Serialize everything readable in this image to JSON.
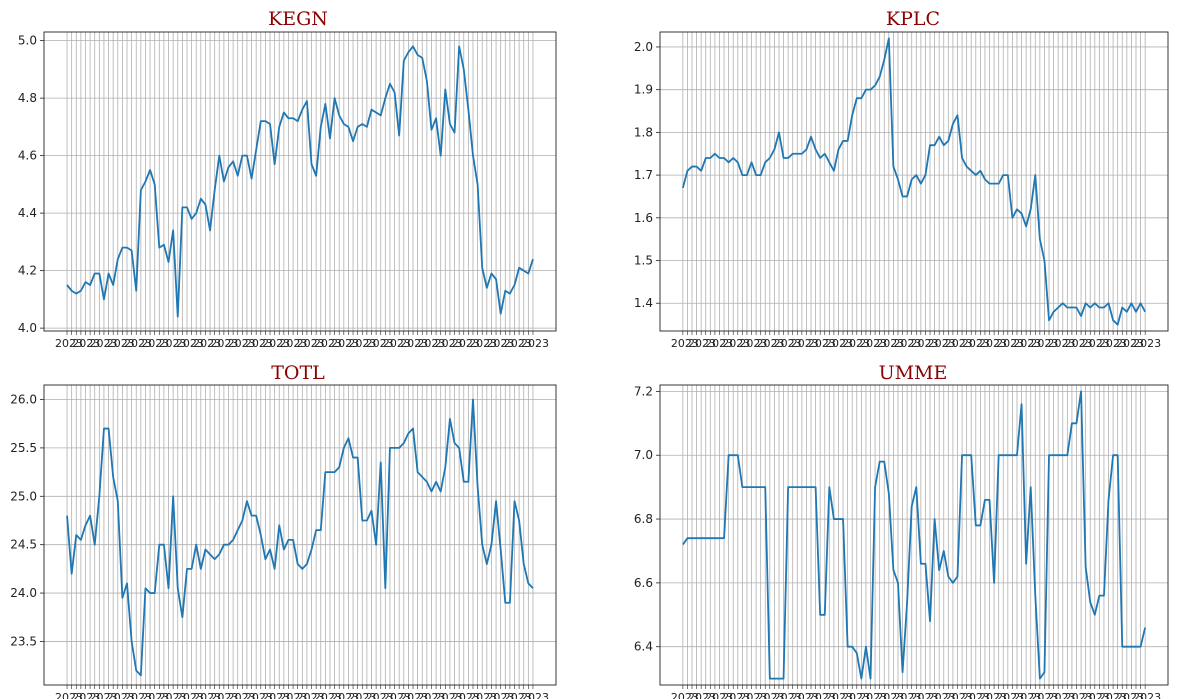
{
  "chart_data": [
    {
      "type": "line",
      "title": "KEGN",
      "ylim": [
        3.99,
        5.03
      ],
      "yticks": [
        4.0,
        4.2,
        4.4,
        4.6,
        4.8,
        5.0
      ],
      "ytick_labels": [
        "4.0",
        "4.2",
        "4.4",
        "4.6",
        "4.8",
        "5.0"
      ],
      "grid": true,
      "line_color": "#1f77b4",
      "x_labels_overlapping": true,
      "x_label_fragment": "2023",
      "values": [
        4.15,
        4.13,
        4.12,
        4.13,
        4.16,
        4.15,
        4.19,
        4.19,
        4.1,
        4.19,
        4.15,
        4.24,
        4.28,
        4.28,
        4.27,
        4.13,
        4.48,
        4.51,
        4.55,
        4.5,
        4.28,
        4.29,
        4.23,
        4.34,
        4.04,
        4.42,
        4.42,
        4.38,
        4.4,
        4.45,
        4.43,
        4.34,
        4.48,
        4.6,
        4.51,
        4.56,
        4.58,
        4.53,
        4.6,
        4.6,
        4.52,
        4.62,
        4.72,
        4.72,
        4.71,
        4.57,
        4.7,
        4.75,
        4.73,
        4.73,
        4.72,
        4.76,
        4.79,
        4.57,
        4.53,
        4.7,
        4.78,
        4.66,
        4.8,
        4.74,
        4.71,
        4.7,
        4.65,
        4.7,
        4.71,
        4.7,
        4.76,
        4.75,
        4.74,
        4.8,
        4.85,
        4.82,
        4.67,
        4.93,
        4.96,
        4.98,
        4.95,
        4.94,
        4.86,
        4.69,
        4.73,
        4.6,
        4.83,
        4.71,
        4.68,
        4.98,
        4.9,
        4.76,
        4.6,
        4.5,
        4.21,
        4.14,
        4.19,
        4.17,
        4.05,
        4.13,
        4.12,
        4.15,
        4.21,
        4.2,
        4.19,
        4.24
      ]
    },
    {
      "type": "line",
      "title": "KPLC",
      "ylim": [
        1.335,
        2.035
      ],
      "yticks": [
        1.4,
        1.5,
        1.6,
        1.7,
        1.8,
        1.9,
        2.0
      ],
      "ytick_labels": [
        "1.4",
        "1.5",
        "1.6",
        "1.7",
        "1.8",
        "1.9",
        "2.0"
      ],
      "grid": true,
      "line_color": "#1f77b4",
      "x_labels_overlapping": true,
      "x_label_fragment": "2023",
      "values": [
        1.67,
        1.71,
        1.72,
        1.72,
        1.71,
        1.74,
        1.74,
        1.75,
        1.74,
        1.74,
        1.73,
        1.74,
        1.73,
        1.7,
        1.7,
        1.73,
        1.7,
        1.7,
        1.73,
        1.74,
        1.76,
        1.8,
        1.74,
        1.74,
        1.75,
        1.75,
        1.75,
        1.76,
        1.79,
        1.76,
        1.74,
        1.75,
        1.73,
        1.71,
        1.76,
        1.78,
        1.78,
        1.84,
        1.88,
        1.88,
        1.9,
        1.9,
        1.91,
        1.93,
        1.97,
        2.02,
        1.72,
        1.69,
        1.65,
        1.65,
        1.69,
        1.7,
        1.68,
        1.7,
        1.77,
        1.77,
        1.79,
        1.77,
        1.78,
        1.82,
        1.84,
        1.74,
        1.72,
        1.71,
        1.7,
        1.71,
        1.69,
        1.68,
        1.68,
        1.68,
        1.7,
        1.7,
        1.6,
        1.62,
        1.61,
        1.58,
        1.62,
        1.7,
        1.55,
        1.5,
        1.36,
        1.38,
        1.39,
        1.4,
        1.39,
        1.39,
        1.39,
        1.37,
        1.4,
        1.39,
        1.4,
        1.39,
        1.39,
        1.4,
        1.36,
        1.35,
        1.39,
        1.38,
        1.4,
        1.38,
        1.4,
        1.38
      ]
    },
    {
      "type": "line",
      "title": "TOTL",
      "ylim": [
        23.05,
        26.15
      ],
      "yticks": [
        23.5,
        24.0,
        24.5,
        25.0,
        25.5,
        26.0
      ],
      "ytick_labels": [
        "23.5",
        "24.0",
        "24.5",
        "25.0",
        "25.5",
        "26.0"
      ],
      "grid": true,
      "line_color": "#1f77b4",
      "x_labels_overlapping": true,
      "x_label_fragment": "2023",
      "values": [
        24.8,
        24.2,
        24.6,
        24.55,
        24.7,
        24.8,
        24.5,
        25.0,
        25.7,
        25.7,
        25.2,
        24.95,
        23.95,
        24.1,
        23.5,
        23.2,
        23.15,
        24.05,
        24.0,
        24.0,
        24.5,
        24.5,
        24.05,
        25.0,
        24.05,
        23.75,
        24.25,
        24.25,
        24.5,
        24.25,
        24.45,
        24.4,
        24.35,
        24.4,
        24.5,
        24.5,
        24.55,
        24.65,
        24.75,
        24.95,
        24.8,
        24.8,
        24.6,
        24.35,
        24.45,
        24.25,
        24.7,
        24.45,
        24.55,
        24.55,
        24.3,
        24.25,
        24.3,
        24.45,
        24.65,
        24.65,
        25.25,
        25.25,
        25.25,
        25.3,
        25.5,
        25.6,
        25.4,
        25.4,
        24.75,
        24.75,
        24.85,
        24.5,
        25.35,
        24.05,
        25.5,
        25.5,
        25.5,
        25.55,
        25.65,
        25.7,
        25.25,
        25.2,
        25.15,
        25.05,
        25.15,
        25.05,
        25.3,
        25.8,
        25.55,
        25.5,
        25.15,
        25.15,
        26.0,
        25.1,
        24.5,
        24.3,
        24.5,
        24.95,
        24.45,
        23.9,
        23.9,
        24.95,
        24.75,
        24.3,
        24.1,
        24.05
      ]
    },
    {
      "type": "line",
      "title": "UMME",
      "ylim": [
        6.28,
        7.22
      ],
      "yticks": [
        6.4,
        6.6,
        6.8,
        7.0,
        7.2
      ],
      "ytick_labels": [
        "6.4",
        "6.6",
        "6.8",
        "7.0",
        "7.2"
      ],
      "grid": true,
      "line_color": "#1f77b4",
      "x_labels_overlapping": true,
      "x_label_fragment": "2023",
      "values": [
        6.72,
        6.74,
        6.74,
        6.74,
        6.74,
        6.74,
        6.74,
        6.74,
        6.74,
        6.74,
        7.0,
        7.0,
        7.0,
        6.9,
        6.9,
        6.9,
        6.9,
        6.9,
        6.9,
        6.3,
        6.3,
        6.3,
        6.3,
        6.9,
        6.9,
        6.9,
        6.9,
        6.9,
        6.9,
        6.9,
        6.5,
        6.5,
        6.9,
        6.8,
        6.8,
        6.8,
        6.4,
        6.4,
        6.38,
        6.3,
        6.4,
        6.3,
        6.9,
        6.98,
        6.98,
        6.88,
        6.64,
        6.6,
        6.32,
        6.54,
        6.84,
        6.9,
        6.66,
        6.66,
        6.48,
        6.8,
        6.64,
        6.7,
        6.62,
        6.6,
        6.62,
        7.0,
        7.0,
        7.0,
        6.78,
        6.78,
        6.86,
        6.86,
        6.6,
        7.0,
        7.0,
        7.0,
        7.0,
        7.0,
        7.16,
        6.66,
        6.9,
        6.56,
        6.3,
        6.32,
        7.0,
        7.0,
        7.0,
        7.0,
        7.0,
        7.1,
        7.1,
        7.2,
        6.65,
        6.54,
        6.5,
        6.56,
        6.56,
        6.86,
        7.0,
        7.0,
        6.4,
        6.4,
        6.4,
        6.4,
        6.4,
        6.46
      ]
    }
  ]
}
